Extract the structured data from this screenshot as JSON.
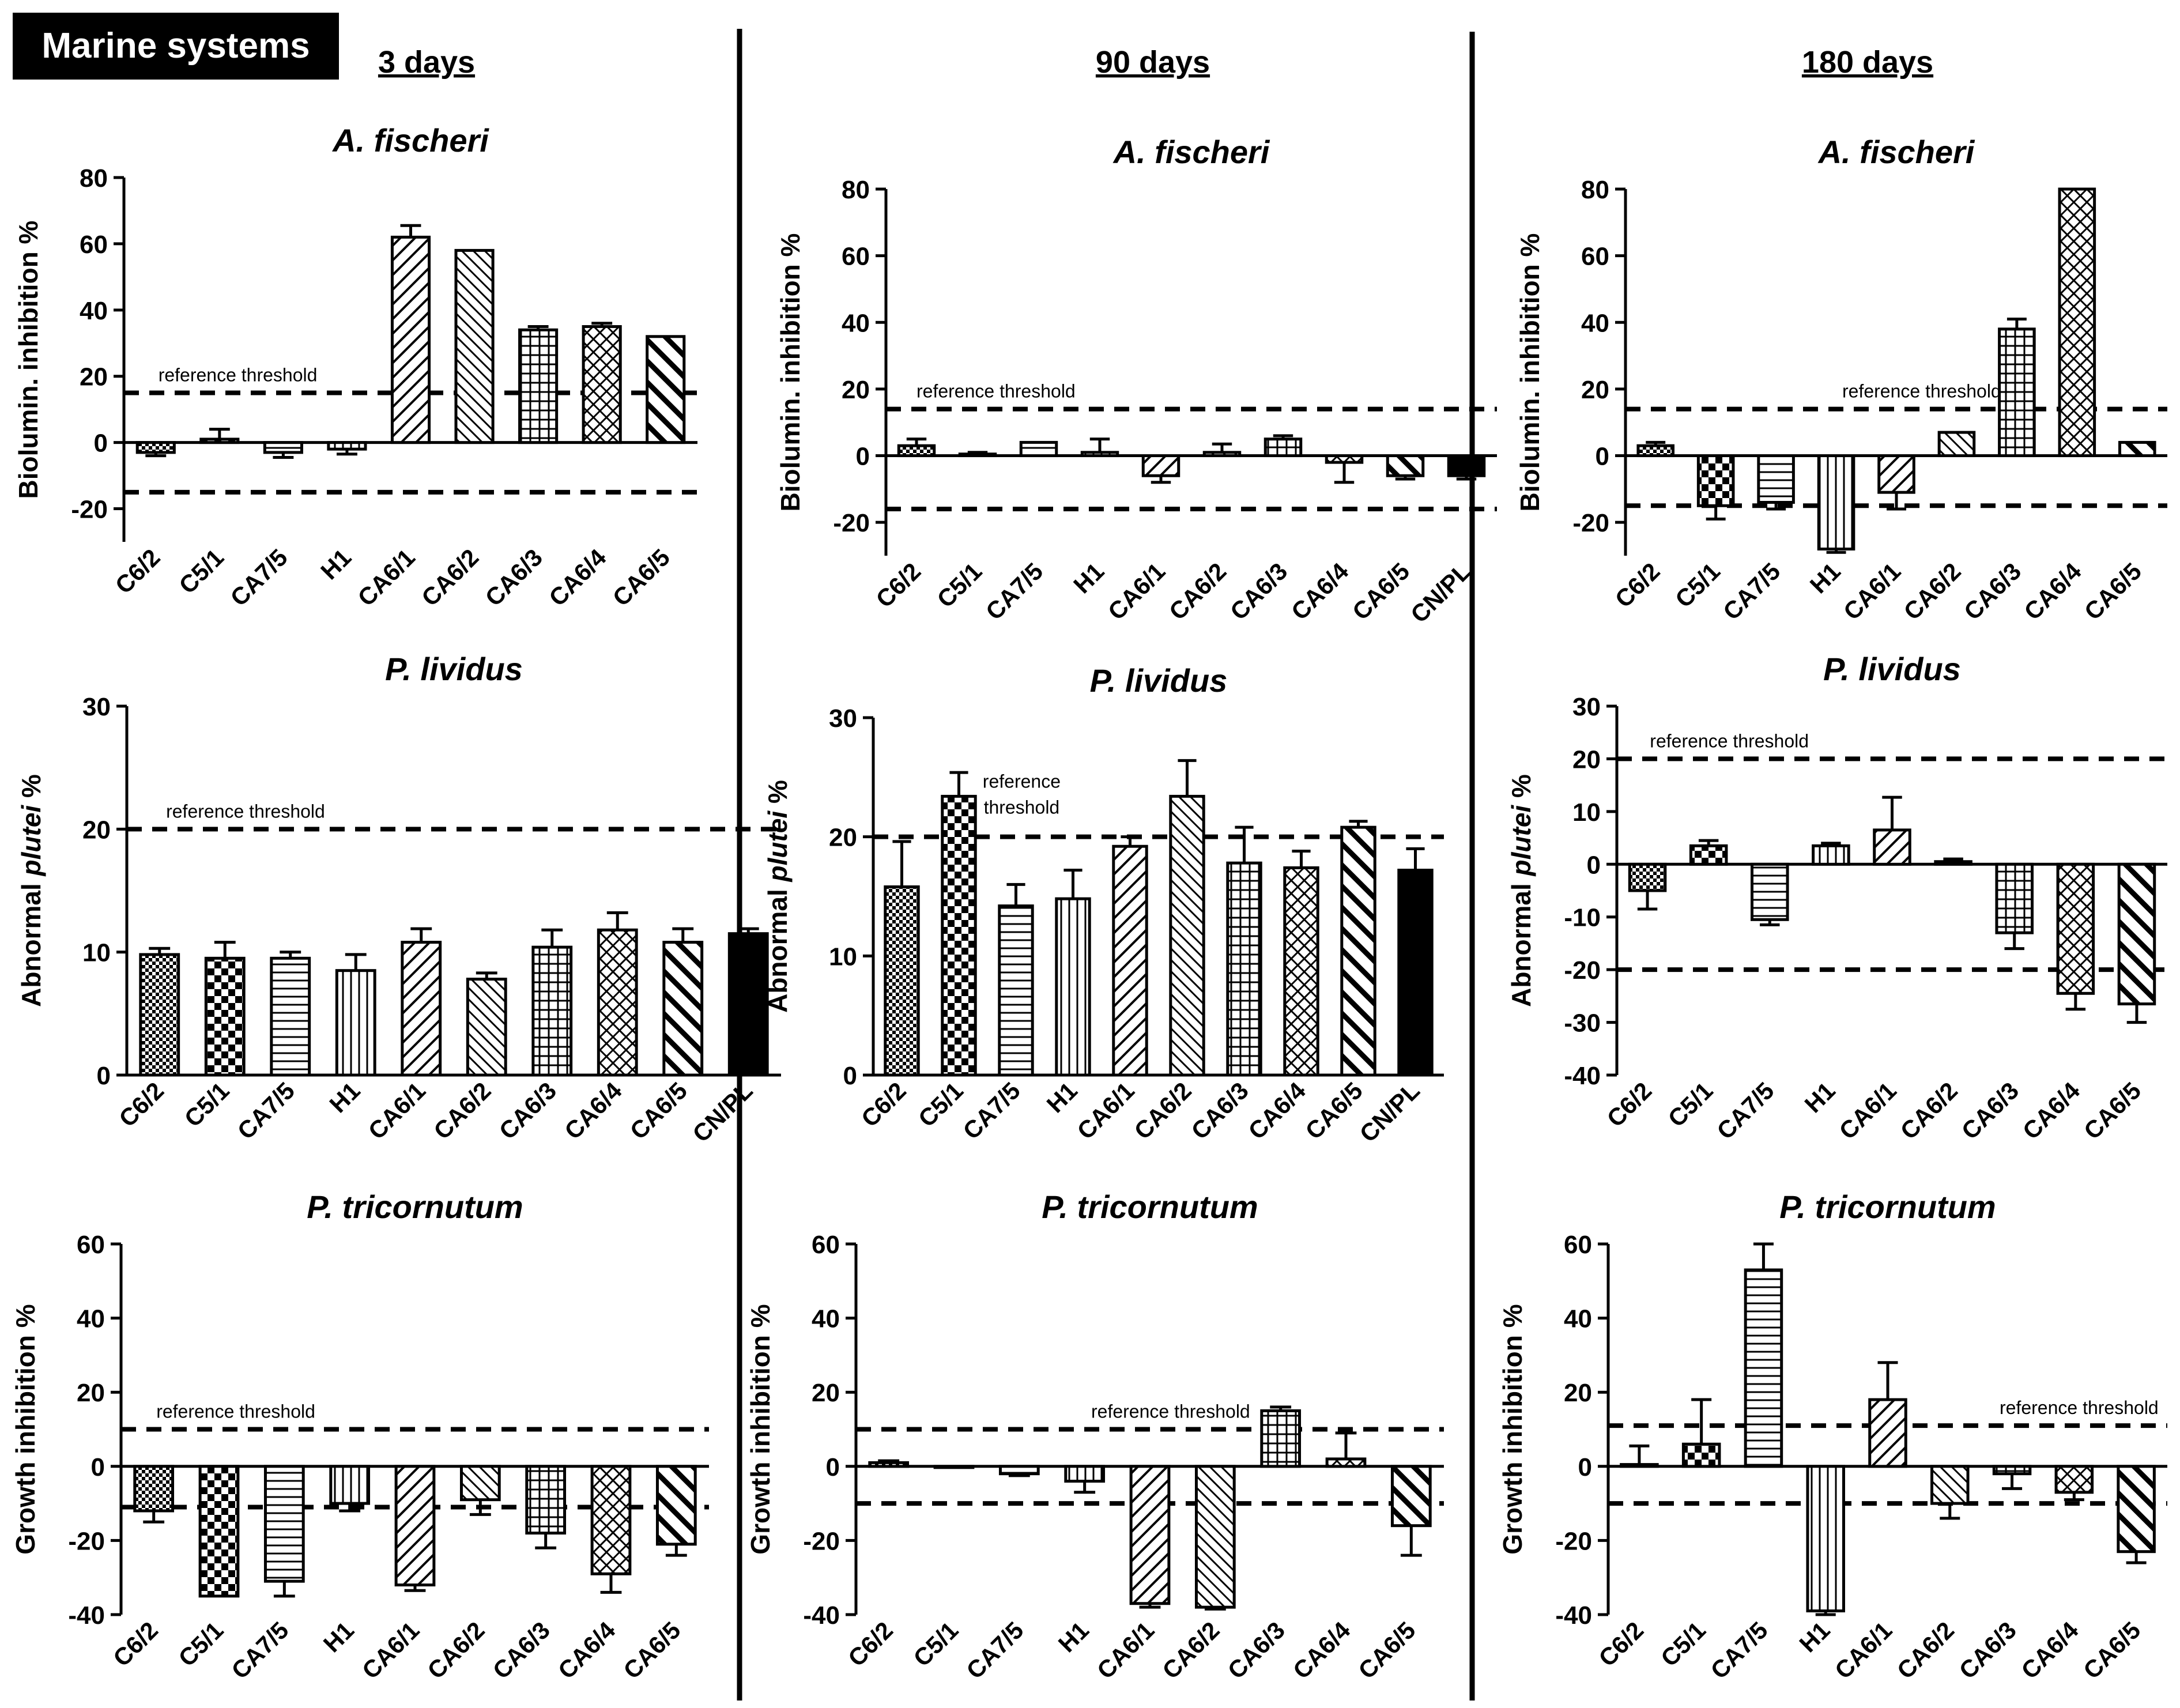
{
  "badge": "Marine systems",
  "columns": [
    {
      "label": "3 days"
    },
    {
      "label": "90 days"
    },
    {
      "label": "180 days"
    }
  ],
  "threshold_label": "reference threshold",
  "chart_data": [
    {
      "type": "bar",
      "day": "3 days",
      "title": "A. fischeri",
      "ylabel": "Biolumin. inhibition %",
      "ylim": [
        -30,
        80
      ],
      "yticks": [
        -20,
        0,
        20,
        40,
        60,
        80
      ],
      "categories": [
        "C6/2",
        "C5/1",
        "CA7/5",
        "H1",
        "CA6/1",
        "CA6/2",
        "CA6/3",
        "CA6/4",
        "CA6/5"
      ],
      "values": [
        -3,
        1,
        -3,
        -2,
        62,
        58,
        34,
        35,
        32
      ],
      "errors": [
        1,
        3,
        1.5,
        1.5,
        3.5,
        0,
        1,
        1,
        0
      ],
      "thresholds": [
        15,
        -15
      ]
    },
    {
      "type": "bar",
      "day": "90 days",
      "title": "A. fischeri",
      "ylabel": "Biolumin. inhibition %",
      "ylim": [
        -30,
        80
      ],
      "yticks": [
        -20,
        0,
        20,
        40,
        60,
        80
      ],
      "categories": [
        "C6/2",
        "C5/1",
        "CA7/5",
        "H1",
        "CA6/1",
        "CA6/2",
        "CA6/3",
        "CA6/4",
        "CA6/5",
        "CN/PL"
      ],
      "values": [
        3,
        0.5,
        4,
        1,
        -6,
        1,
        5,
        -2,
        -6,
        -6
      ],
      "errors": [
        2,
        0.5,
        0,
        4,
        2,
        2.5,
        1,
        6,
        1,
        1
      ],
      "thresholds": [
        14,
        -16
      ]
    },
    {
      "type": "bar",
      "day": "180 days",
      "title": "A. fischeri",
      "ylabel": "Biolumin. inhibition %",
      "ylim": [
        -30,
        80
      ],
      "yticks": [
        -20,
        0,
        20,
        40,
        60,
        80
      ],
      "categories": [
        "C6/2",
        "C5/1",
        "CA7/5",
        "H1",
        "CA6/1",
        "CA6/2",
        "CA6/3",
        "CA6/4",
        "CA6/5"
      ],
      "values": [
        3,
        -15,
        -14,
        -28,
        -11,
        7,
        38,
        80,
        4
      ],
      "errors": [
        1,
        4,
        2,
        1,
        5,
        0,
        3,
        0,
        0
      ],
      "thresholds": [
        14,
        -15
      ]
    },
    {
      "type": "bar",
      "day": "3 days",
      "title": "P. lividus",
      "ylabel": "Abnormal plutei %",
      "ylim": [
        0,
        30
      ],
      "yticks": [
        0,
        10,
        20,
        30
      ],
      "categories": [
        "C6/2",
        "C5/1",
        "CA7/5",
        "H1",
        "CA6/1",
        "CA6/2",
        "CA6/3",
        "CA6/4",
        "CA6/5",
        "CN/PL"
      ],
      "values": [
        9.8,
        9.5,
        9.5,
        8.5,
        10.8,
        7.8,
        10.4,
        11.8,
        10.8,
        11.5
      ],
      "errors": [
        0.5,
        1.3,
        0.5,
        1.3,
        1.1,
        0.5,
        1.4,
        1.4,
        1.1,
        0.4
      ],
      "thresholds": [
        20
      ]
    },
    {
      "type": "bar",
      "day": "90 days",
      "title": "P. lividus",
      "ylabel": "Abnormal plutei %",
      "ylim": [
        0,
        30
      ],
      "yticks": [
        0,
        10,
        20,
        30
      ],
      "categories": [
        "C6/2",
        "C5/1",
        "CA7/5",
        "H1",
        "CA6/1",
        "CA6/2",
        "CA6/3",
        "CA6/4",
        "CA6/5",
        "CN/PL"
      ],
      "values": [
        15.8,
        23.4,
        14.2,
        14.8,
        19.2,
        23.4,
        17.8,
        17.4,
        20.8,
        17.2
      ],
      "errors": [
        3.8,
        2,
        1.8,
        2.4,
        0.8,
        3,
        3,
        1.4,
        0.5,
        1.8
      ],
      "thresholds": [
        20
      ]
    },
    {
      "type": "bar",
      "day": "180 days",
      "title": "P. lividus",
      "ylabel": "Abnormal plutei %",
      "ylim": [
        -40,
        30
      ],
      "yticks": [
        -40,
        -30,
        -20,
        -10,
        0,
        10,
        20,
        30
      ],
      "categories": [
        "C6/2",
        "C5/1",
        "CA7/5",
        "H1",
        "CA6/1",
        "CA6/2",
        "CA6/3",
        "CA6/4",
        "CA6/5"
      ],
      "values": [
        -5,
        3.5,
        -10.5,
        3.5,
        6.5,
        0.5,
        -13,
        -24.5,
        -26.5
      ],
      "errors": [
        3.5,
        1,
        1,
        0.5,
        6.2,
        0.5,
        3,
        3,
        3.5
      ],
      "thresholds": [
        20,
        -20
      ]
    },
    {
      "type": "bar",
      "day": "3 days",
      "title": "P. tricornutum",
      "ylabel": "Growth inhibition %",
      "ylim": [
        -40,
        60
      ],
      "yticks": [
        -40,
        -20,
        0,
        20,
        40,
        60
      ],
      "categories": [
        "C6/2",
        "C5/1",
        "CA7/5",
        "H1",
        "CA6/1",
        "CA6/2",
        "CA6/3",
        "CA6/4",
        "CA6/5"
      ],
      "values": [
        -12,
        -35,
        -31,
        -10,
        -32,
        -9,
        -18,
        -29,
        -21
      ],
      "errors": [
        3,
        0,
        4,
        2,
        1.5,
        4,
        4,
        5,
        3
      ],
      "thresholds": [
        10,
        -11
      ]
    },
    {
      "type": "bar",
      "day": "90 days",
      "title": "P. tricornutum",
      "ylabel": "Growth inhibition %",
      "ylim": [
        -40,
        60
      ],
      "yticks": [
        -40,
        -20,
        0,
        20,
        40,
        60
      ],
      "categories": [
        "C6/2",
        "C5/1",
        "CA7/5",
        "H1",
        "CA6/1",
        "CA6/2",
        "CA6/3",
        "CA6/4",
        "CA6/5"
      ],
      "values": [
        1,
        0,
        -2,
        -4,
        -37,
        -38,
        15,
        2,
        -16
      ],
      "errors": [
        0.5,
        0,
        0.5,
        3,
        1,
        0.5,
        1,
        7,
        8
      ],
      "thresholds": [
        10,
        -10
      ]
    },
    {
      "type": "bar",
      "day": "180 days",
      "title": "P. tricornutum",
      "ylabel": "Growth inhibition %",
      "ylim": [
        -40,
        60
      ],
      "yticks": [
        -40,
        -20,
        0,
        20,
        40,
        60
      ],
      "categories": [
        "C6/2",
        "C5/1",
        "CA7/5",
        "H1",
        "CA6/1",
        "CA6/2",
        "CA6/3",
        "CA6/4",
        "CA6/5"
      ],
      "values": [
        0.5,
        6,
        53,
        -39,
        18,
        -10,
        -2,
        -7,
        -23
      ],
      "errors": [
        5,
        12,
        7,
        1,
        10,
        4,
        4,
        2,
        3
      ],
      "thresholds": [
        11,
        -10
      ]
    }
  ]
}
